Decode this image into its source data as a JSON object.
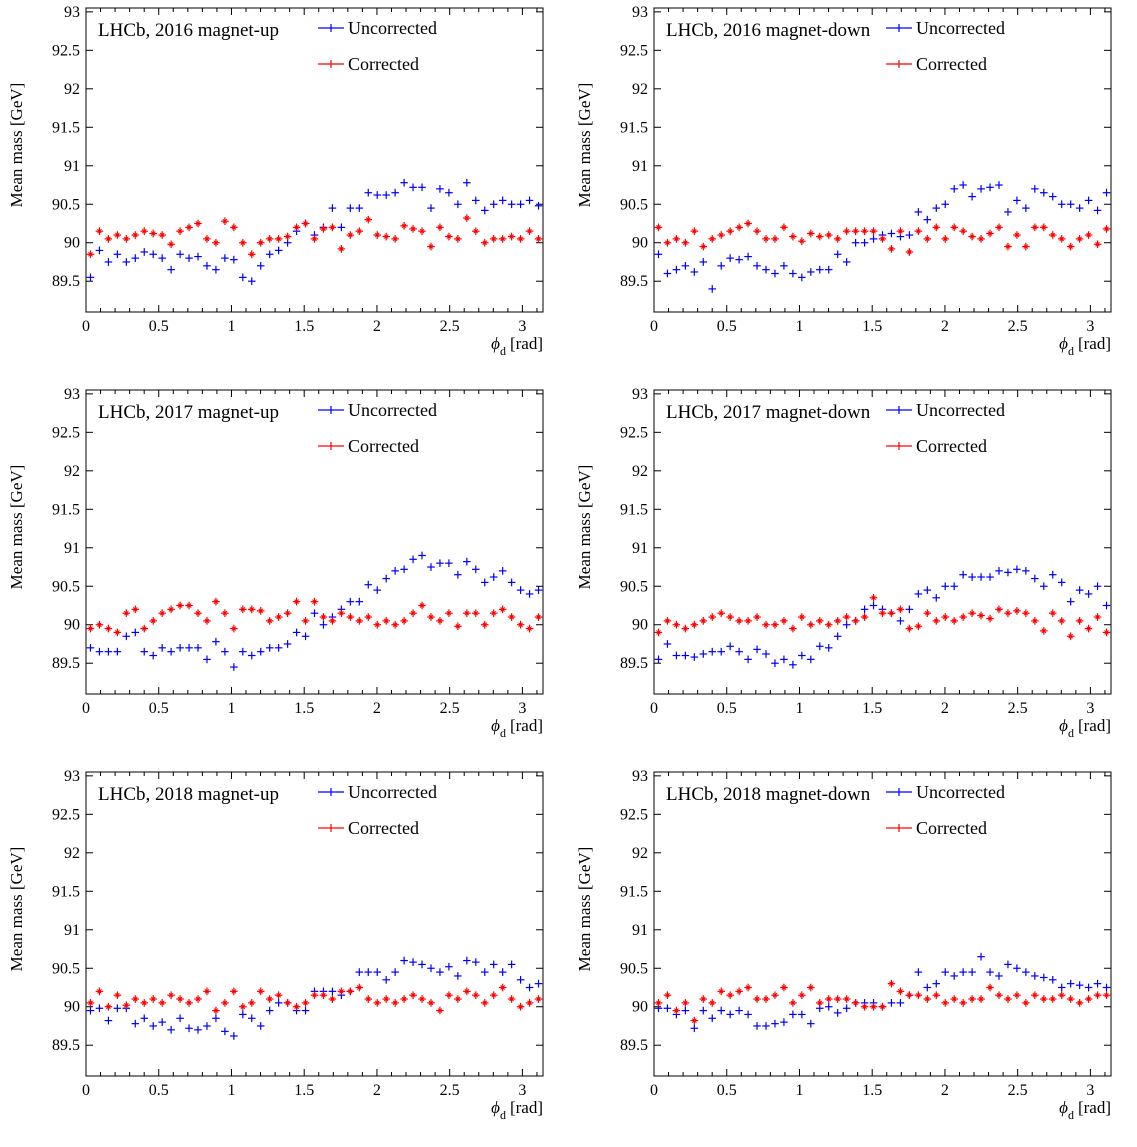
{
  "chart_data": [
    {
      "type": "scatter",
      "title": "LHCb, 2016 magnet-up",
      "xlabel_symbol": "ϕ",
      "xlabel_sub": "d",
      "xlabel_unit": "[rad]",
      "ylabel": "Mean mass [GeV]",
      "xlim": [
        0,
        3.1416
      ],
      "ylim": [
        89.1,
        93.05
      ],
      "xticks": [
        0,
        0.5,
        1,
        1.5,
        2,
        2.5,
        3
      ],
      "yticks": [
        89.5,
        90,
        90.5,
        91,
        91.5,
        92,
        92.5,
        93
      ],
      "xtick_labels": [
        "0",
        "0.5",
        "1",
        "1.5",
        "2",
        "2.5",
        "3"
      ],
      "ytick_labels": [
        "89.5",
        "90",
        "90.5",
        "91",
        "91.5",
        "92",
        "92.5",
        "93"
      ],
      "legend_position": "top-right",
      "series": [
        {
          "name": "Uncorrected",
          "color": "#0000ff",
          "y": [
            89.55,
            89.9,
            89.75,
            89.85,
            89.75,
            89.8,
            89.88,
            89.85,
            89.8,
            89.65,
            89.85,
            89.8,
            89.82,
            89.7,
            89.65,
            89.8,
            89.78,
            89.55,
            89.5,
            89.7,
            89.85,
            89.9,
            90.0,
            90.15,
            90.25,
            90.1,
            90.2,
            90.45,
            90.2,
            90.45,
            90.45,
            90.65,
            90.62,
            90.62,
            90.65,
            90.78,
            90.72,
            90.72,
            90.45,
            90.7,
            90.65,
            90.5,
            90.78,
            90.55,
            90.42,
            90.5,
            90.55,
            90.5,
            90.5,
            90.55,
            90.48
          ]
        },
        {
          "name": "Corrected",
          "color": "#ff0000",
          "y": [
            89.85,
            90.15,
            90.05,
            90.1,
            90.05,
            90.1,
            90.15,
            90.12,
            90.1,
            89.98,
            90.15,
            90.2,
            90.25,
            90.05,
            90.0,
            90.28,
            90.2,
            90.0,
            89.85,
            90.0,
            90.05,
            90.05,
            90.08,
            90.2,
            90.25,
            90.05,
            90.18,
            90.2,
            89.92,
            90.1,
            90.15,
            90.3,
            90.1,
            90.08,
            90.05,
            90.22,
            90.18,
            90.15,
            89.95,
            90.2,
            90.08,
            90.05,
            90.32,
            90.15,
            90.0,
            90.05,
            90.05,
            90.08,
            90.05,
            90.15,
            90.05
          ]
        }
      ]
    },
    {
      "type": "scatter",
      "title": "LHCb, 2016 magnet-down",
      "xlabel_symbol": "ϕ",
      "xlabel_sub": "d",
      "xlabel_unit": "[rad]",
      "ylabel": "Mean mass [GeV]",
      "xlim": [
        0,
        3.1416
      ],
      "ylim": [
        89.1,
        93.05
      ],
      "xticks": [
        0,
        0.5,
        1,
        1.5,
        2,
        2.5,
        3
      ],
      "yticks": [
        89.5,
        90,
        90.5,
        91,
        91.5,
        92,
        92.5,
        93
      ],
      "xtick_labels": [
        "0",
        "0.5",
        "1",
        "1.5",
        "2",
        "2.5",
        "3"
      ],
      "ytick_labels": [
        "89.5",
        "90",
        "90.5",
        "91",
        "91.5",
        "92",
        "92.5",
        "93"
      ],
      "legend_position": "top-right",
      "series": [
        {
          "name": "Uncorrected",
          "color": "#0000ff",
          "y": [
            89.85,
            89.6,
            89.65,
            89.7,
            89.62,
            89.75,
            89.4,
            89.7,
            89.8,
            89.78,
            89.82,
            89.7,
            89.65,
            89.6,
            89.7,
            89.6,
            89.55,
            89.62,
            89.65,
            89.65,
            89.85,
            89.75,
            90.0,
            90.0,
            90.05,
            90.1,
            90.12,
            90.08,
            90.1,
            90.4,
            90.3,
            90.45,
            90.5,
            90.7,
            90.75,
            90.6,
            90.7,
            90.72,
            90.75,
            90.4,
            90.55,
            90.45,
            90.7,
            90.65,
            90.6,
            90.5,
            90.5,
            90.45,
            90.55,
            90.42,
            90.65
          ]
        },
        {
          "name": "Corrected",
          "color": "#ff0000",
          "y": [
            90.2,
            90.0,
            90.05,
            90.0,
            90.15,
            89.95,
            90.05,
            90.1,
            90.15,
            90.2,
            90.25,
            90.15,
            90.05,
            90.05,
            90.2,
            90.08,
            90.02,
            90.12,
            90.08,
            90.1,
            90.05,
            90.15,
            90.15,
            90.15,
            90.15,
            90.05,
            89.92,
            90.15,
            89.88,
            90.15,
            90.05,
            90.2,
            90.05,
            90.2,
            90.15,
            90.08,
            90.05,
            90.12,
            90.2,
            89.95,
            90.1,
            89.95,
            90.2,
            90.2,
            90.1,
            90.05,
            89.95,
            90.05,
            90.1,
            89.98,
            90.18
          ]
        }
      ]
    },
    {
      "type": "scatter",
      "title": "LHCb, 2017 magnet-up",
      "xlabel_symbol": "ϕ",
      "xlabel_sub": "d",
      "xlabel_unit": "[rad]",
      "ylabel": "Mean mass [GeV]",
      "xlim": [
        0,
        3.1416
      ],
      "ylim": [
        89.1,
        93.05
      ],
      "xticks": [
        0,
        0.5,
        1,
        1.5,
        2,
        2.5,
        3
      ],
      "yticks": [
        89.5,
        90,
        90.5,
        91,
        91.5,
        92,
        92.5,
        93
      ],
      "xtick_labels": [
        "0",
        "0.5",
        "1",
        "1.5",
        "2",
        "2.5",
        "3"
      ],
      "ytick_labels": [
        "89.5",
        "90",
        "90.5",
        "91",
        "91.5",
        "92",
        "92.5",
        "93"
      ],
      "legend_position": "top-right",
      "series": [
        {
          "name": "Uncorrected",
          "color": "#0000ff",
          "y": [
            89.7,
            89.65,
            89.65,
            89.65,
            89.85,
            89.9,
            89.65,
            89.6,
            89.7,
            89.65,
            89.7,
            89.7,
            89.7,
            89.55,
            89.78,
            89.65,
            89.45,
            89.65,
            89.6,
            89.65,
            89.7,
            89.7,
            89.75,
            89.9,
            89.85,
            90.15,
            90.0,
            90.1,
            90.2,
            90.3,
            90.3,
            90.52,
            90.45,
            90.6,
            90.7,
            90.72,
            90.85,
            90.9,
            90.75,
            90.8,
            90.8,
            90.65,
            90.82,
            90.72,
            90.55,
            90.62,
            90.7,
            90.55,
            90.45,
            90.4,
            90.45
          ]
        },
        {
          "name": "Corrected",
          "color": "#ff0000",
          "y": [
            89.95,
            90.0,
            89.95,
            89.9,
            90.15,
            90.2,
            89.95,
            90.05,
            90.15,
            90.2,
            90.25,
            90.25,
            90.15,
            90.05,
            90.3,
            90.15,
            89.95,
            90.2,
            90.2,
            90.18,
            90.05,
            90.1,
            90.15,
            90.3,
            90.05,
            90.3,
            90.1,
            90.05,
            90.15,
            90.1,
            90.05,
            90.1,
            90.0,
            90.05,
            90.0,
            90.05,
            90.15,
            90.25,
            90.1,
            90.05,
            90.15,
            89.98,
            90.15,
            90.15,
            90.0,
            90.15,
            90.2,
            90.1,
            90.0,
            89.95,
            90.1
          ]
        }
      ]
    },
    {
      "type": "scatter",
      "title": "LHCb, 2017 magnet-down",
      "xlabel_symbol": "ϕ",
      "xlabel_sub": "d",
      "xlabel_unit": "[rad]",
      "ylabel": "Mean mass [GeV]",
      "xlim": [
        0,
        3.1416
      ],
      "ylim": [
        89.1,
        93.05
      ],
      "xticks": [
        0,
        0.5,
        1,
        1.5,
        2,
        2.5,
        3
      ],
      "yticks": [
        89.5,
        90,
        90.5,
        91,
        91.5,
        92,
        92.5,
        93
      ],
      "xtick_labels": [
        "0",
        "0.5",
        "1",
        "1.5",
        "2",
        "2.5",
        "3"
      ],
      "ytick_labels": [
        "89.5",
        "90",
        "90.5",
        "91",
        "91.5",
        "92",
        "92.5",
        "93"
      ],
      "legend_position": "top-right",
      "series": [
        {
          "name": "Uncorrected",
          "color": "#0000ff",
          "y": [
            89.55,
            89.75,
            89.6,
            89.6,
            89.58,
            89.62,
            89.65,
            89.65,
            89.72,
            89.65,
            89.55,
            89.68,
            89.62,
            89.5,
            89.55,
            89.48,
            89.6,
            89.55,
            89.72,
            89.7,
            89.85,
            90.0,
            90.05,
            90.2,
            90.25,
            90.2,
            90.15,
            90.05,
            90.2,
            90.4,
            90.45,
            90.35,
            90.5,
            90.5,
            90.65,
            90.62,
            90.62,
            90.62,
            90.7,
            90.68,
            90.72,
            90.7,
            90.6,
            90.5,
            90.65,
            90.55,
            90.3,
            90.45,
            90.4,
            90.5,
            90.25
          ]
        },
        {
          "name": "Corrected",
          "color": "#ff0000",
          "y": [
            89.9,
            90.05,
            90.0,
            89.95,
            90.0,
            90.05,
            90.1,
            90.15,
            90.1,
            90.05,
            90.05,
            90.1,
            90.0,
            90.0,
            90.05,
            89.95,
            90.1,
            90.0,
            90.05,
            90.0,
            90.05,
            90.1,
            90.05,
            90.1,
            90.35,
            90.15,
            90.15,
            90.2,
            89.95,
            89.98,
            90.15,
            90.05,
            90.1,
            90.05,
            90.1,
            90.15,
            90.12,
            90.08,
            90.2,
            90.15,
            90.18,
            90.15,
            90.05,
            89.92,
            90.15,
            90.05,
            89.85,
            90.05,
            89.95,
            90.1,
            89.9
          ]
        }
      ]
    },
    {
      "type": "scatter",
      "title": "LHCb, 2018 magnet-up",
      "xlabel_symbol": "ϕ",
      "xlabel_sub": "d",
      "xlabel_unit": "[rad]",
      "ylabel": "Mean mass [GeV]",
      "xlim": [
        0,
        3.1416
      ],
      "ylim": [
        89.1,
        93.05
      ],
      "xticks": [
        0,
        0.5,
        1,
        1.5,
        2,
        2.5,
        3
      ],
      "yticks": [
        89.5,
        90,
        90.5,
        91,
        91.5,
        92,
        92.5,
        93
      ],
      "xtick_labels": [
        "0",
        "0.5",
        "1",
        "1.5",
        "2",
        "2.5",
        "3"
      ],
      "ytick_labels": [
        "89.5",
        "90",
        "90.5",
        "91",
        "91.5",
        "92",
        "92.5",
        "93"
      ],
      "legend_position": "top-right",
      "series": [
        {
          "name": "Uncorrected",
          "color": "#0000ff",
          "y": [
            89.95,
            89.98,
            89.82,
            89.98,
            89.98,
            89.78,
            89.85,
            89.75,
            89.8,
            89.7,
            89.85,
            89.72,
            89.7,
            89.75,
            89.85,
            89.68,
            89.62,
            89.9,
            89.85,
            89.75,
            89.95,
            90.05,
            90.05,
            89.95,
            89.95,
            90.2,
            90.2,
            90.2,
            90.15,
            90.2,
            90.45,
            90.45,
            90.45,
            90.35,
            90.45,
            90.6,
            90.58,
            90.55,
            90.5,
            90.45,
            90.52,
            90.4,
            90.6,
            90.58,
            90.45,
            90.55,
            90.45,
            90.55,
            90.35,
            90.25,
            90.3
          ]
        },
        {
          "name": "Corrected",
          "color": "#ff0000",
          "y": [
            90.05,
            90.2,
            90.0,
            90.15,
            90.02,
            90.1,
            90.05,
            90.1,
            90.05,
            90.15,
            90.1,
            90.05,
            90.1,
            90.2,
            89.95,
            90.05,
            90.2,
            90.0,
            90.05,
            90.2,
            90.1,
            90.15,
            90.05,
            90.0,
            90.05,
            90.15,
            90.15,
            90.1,
            90.2,
            90.2,
            90.25,
            90.1,
            90.05,
            90.1,
            90.05,
            90.1,
            90.15,
            90.1,
            90.05,
            89.95,
            90.15,
            90.1,
            90.2,
            90.15,
            90.05,
            90.15,
            90.25,
            90.1,
            90.0,
            90.05,
            90.1
          ]
        }
      ]
    },
    {
      "type": "scatter",
      "title": "LHCb, 2018 magnet-down",
      "xlabel_symbol": "ϕ",
      "xlabel_sub": "d",
      "xlabel_unit": "[rad]",
      "ylabel": "Mean mass [GeV]",
      "xlim": [
        0,
        3.1416
      ],
      "ylim": [
        89.1,
        93.05
      ],
      "xticks": [
        0,
        0.5,
        1,
        1.5,
        2,
        2.5,
        3
      ],
      "yticks": [
        89.5,
        90,
        90.5,
        91,
        91.5,
        92,
        92.5,
        93
      ],
      "xtick_labels": [
        "0",
        "0.5",
        "1",
        "1.5",
        "2",
        "2.5",
        "3"
      ],
      "ytick_labels": [
        "89.5",
        "90",
        "90.5",
        "91",
        "91.5",
        "92",
        "92.5",
        "93"
      ],
      "legend_position": "top-right",
      "series": [
        {
          "name": "Uncorrected",
          "color": "#0000ff",
          "y": [
            89.98,
            89.98,
            89.9,
            89.95,
            89.72,
            89.95,
            89.85,
            89.95,
            89.9,
            89.95,
            89.9,
            89.75,
            89.75,
            89.78,
            89.8,
            89.9,
            89.9,
            89.78,
            89.98,
            90.0,
            89.92,
            89.98,
            90.05,
            90.05,
            90.05,
            90.0,
            90.05,
            90.05,
            90.15,
            90.45,
            90.25,
            90.3,
            90.45,
            90.4,
            90.45,
            90.45,
            90.65,
            90.45,
            90.4,
            90.55,
            90.5,
            90.45,
            90.4,
            90.38,
            90.35,
            90.25,
            90.3,
            90.28,
            90.25,
            90.3,
            90.25
          ]
        },
        {
          "name": "Corrected",
          "color": "#ff0000",
          "y": [
            90.05,
            90.15,
            89.95,
            90.05,
            89.82,
            90.1,
            90.05,
            90.2,
            90.15,
            90.2,
            90.25,
            90.1,
            90.1,
            90.15,
            90.25,
            90.05,
            90.15,
            90.25,
            90.05,
            90.1,
            90.1,
            90.1,
            90.05,
            90.0,
            90.0,
            90.0,
            90.3,
            90.2,
            90.15,
            90.15,
            90.1,
            90.15,
            90.05,
            90.1,
            90.05,
            90.1,
            90.1,
            90.25,
            90.15,
            90.1,
            90.15,
            90.05,
            90.15,
            90.1,
            90.1,
            90.15,
            90.1,
            90.05,
            90.1,
            90.15,
            90.15
          ]
        }
      ]
    }
  ]
}
